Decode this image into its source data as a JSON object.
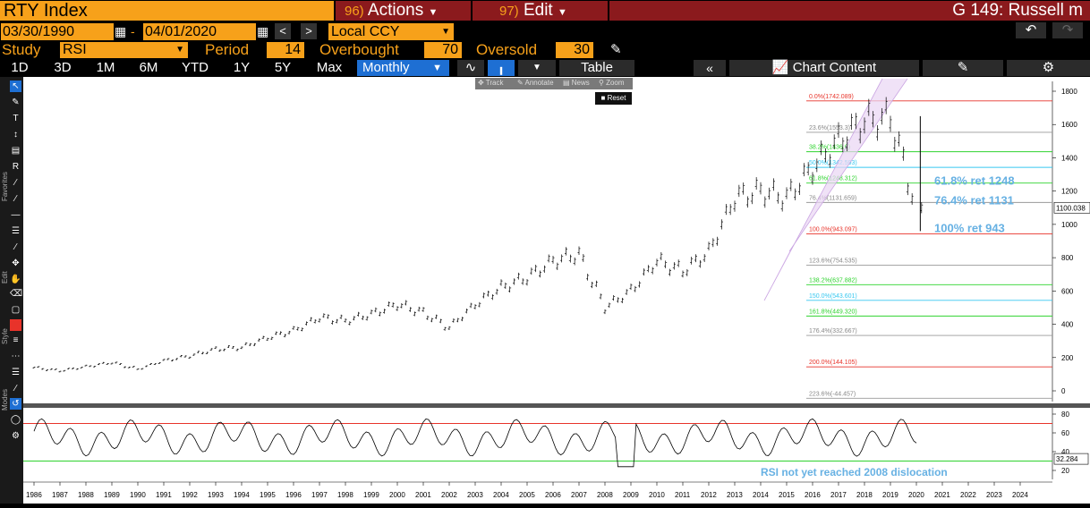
{
  "titlebar": {
    "security": "RTY Index",
    "actions_num": "96)",
    "actions_label": "Actions",
    "edit_num": "97)",
    "edit_label": "Edit",
    "page_title": "G 149: Russell m"
  },
  "dates": {
    "start": "03/30/1990",
    "sep": "-",
    "end": "04/01/2020",
    "currency": "Local CCY"
  },
  "study": {
    "study_label": "Study",
    "study_value": "RSI",
    "period_label": "Period",
    "period_value": "14",
    "overbought_label": "Overbought",
    "overbought_value": "70",
    "oversold_label": "Oversold",
    "oversold_value": "30"
  },
  "periods": [
    "1D",
    "3D",
    "1M",
    "6M",
    "YTD",
    "1Y",
    "5Y",
    "Max"
  ],
  "frequency": "Monthly",
  "table_label": "Table",
  "chart_content_label": "Chart Content",
  "zoombar": {
    "track": "Track",
    "annotate": "Annotate",
    "news": "News",
    "zoom": "Zoom",
    "reset": "Reset"
  },
  "left_labels": {
    "favorites": "Favorites",
    "edit": "Edit",
    "style": "Style",
    "modes": "Modes"
  },
  "icons": [
    "cursor-icon",
    "pencil-icon",
    "text-icon",
    "fib-icon",
    "r-icon",
    "brush-icon",
    "line-icon",
    "gear-icon",
    "undo-icon",
    "redo-icon",
    "collapse-icon",
    "chart-icon",
    "edit-chart-icon"
  ],
  "colors": {
    "orange": "#f7a11a",
    "darkred": "#8b1a1d",
    "blue": "#1e6fd3",
    "fib_red": "#e8332a",
    "fib_green": "#2fd32f",
    "fib_cyan": "#37c8f0",
    "annot_blue": "#67b1e3"
  },
  "chart_data": {
    "type": "bar",
    "subtype": "ohlc",
    "price_axis": {
      "ticks": [
        "1800",
        "1600",
        "1400",
        "1200",
        "1000",
        "800",
        "600",
        "400",
        "200",
        "0"
      ],
      "last_price": "1100.038"
    },
    "x_ticks": [
      "1986",
      "1987",
      "1988",
      "1989",
      "1990",
      "1991",
      "1992",
      "1993",
      "1994",
      "1995",
      "1996",
      "1997",
      "1998",
      "1999",
      "2000",
      "2001",
      "2002",
      "2003",
      "2004",
      "2005",
      "2006",
      "2007",
      "2008",
      "2009",
      "2010",
      "2011",
      "2012",
      "2013",
      "2014",
      "2015",
      "2016",
      "2017",
      "2018",
      "2019",
      "2020",
      "2021",
      "2022",
      "2023",
      "2024"
    ],
    "series": [
      {
        "x": [
          1986,
          1987,
          1988,
          1989,
          1990,
          1991,
          1992,
          1993,
          1994,
          1995,
          1996,
          1997,
          1998,
          1999,
          2000,
          2001,
          2002,
          2003,
          2004,
          2005,
          2006,
          2007,
          2008,
          2009,
          2010,
          2011,
          2012,
          2013,
          2014,
          2015,
          2016,
          2017,
          2018,
          2019,
          2020
        ],
        "values": [
          140,
          120,
          145,
          170,
          130,
          180,
          210,
          250,
          260,
          320,
          360,
          440,
          420,
          460,
          520,
          470,
          380,
          520,
          620,
          680,
          780,
          820,
          500,
          600,
          780,
          720,
          830,
          1160,
          1200,
          1160,
          1340,
          1500,
          1620,
          1640,
          1100
        ]
      }
    ],
    "fibonacci": [
      {
        "label": "0.0%(1742.089)",
        "value": 1742.089
      },
      {
        "label": "23.6%(1553.3)",
        "value": 1553.3
      },
      {
        "label": "38.2%(1436.6)",
        "value": 1436.6
      },
      {
        "label": "50.0%(1342.593)",
        "value": 1342.593
      },
      {
        "label": "61.8%(1248.312)",
        "value": 1248.312
      },
      {
        "label": "76.4%(1131.659)",
        "value": 1131.659
      },
      {
        "label": "100.0%(943.097)",
        "value": 943.097
      },
      {
        "label": "123.6%(754.535)",
        "value": 754.535
      },
      {
        "label": "138.2%(637.882)",
        "value": 637.882
      },
      {
        "label": "150.0%(543.601)",
        "value": 543.601
      },
      {
        "label": "161.8%(449.320)",
        "value": 449.32
      },
      {
        "label": "176.4%(332.667)",
        "value": 332.667
      },
      {
        "label": "200.0%(144.105)",
        "value": 144.105
      },
      {
        "label": "223.6%(-44.457)",
        "value": -44.457
      }
    ],
    "annotations": [
      "61.8% ret 1248",
      "76.4% ret 1131",
      "100% ret 943"
    ],
    "rsi": {
      "ticks": [
        "80",
        "60",
        "40",
        "20"
      ],
      "last": "32.284",
      "overbought": 70,
      "oversold": 30,
      "note": "RSI not yet reached 2008 dislocation"
    }
  }
}
